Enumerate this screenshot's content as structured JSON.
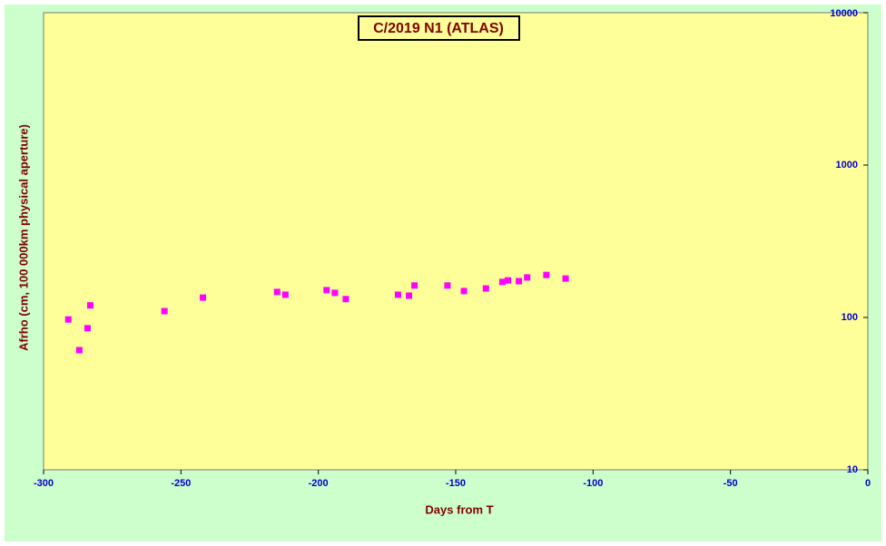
{
  "chart_data": {
    "type": "scatter",
    "title": "C/2019 N1 (ATLAS)",
    "x_label": "Days from T",
    "y_label": "Afrho (cm, 100 000km physical aperture)",
    "series": [
      {
        "color": "#ff00ff",
        "x": [
          -291,
          -287,
          -284,
          -283,
          -256,
          -242,
          -215,
          -212,
          -197,
          -194,
          -190,
          -171,
          -167,
          -165,
          -153,
          -147,
          -139,
          -133,
          -131,
          -127,
          -124,
          -117,
          -110
        ],
        "values": [
          97,
          61,
          85,
          120,
          110,
          135,
          147,
          141,
          151,
          145,
          132,
          141,
          139,
          162,
          162,
          149,
          155,
          171,
          175,
          173,
          183,
          190,
          180
        ]
      }
    ],
    "xlim": [
      -300,
      0
    ],
    "xticks": [
      -300,
      -250,
      -200,
      -150,
      -100,
      -50,
      0
    ],
    "ylim": [
      10,
      10000
    ],
    "yticks": [
      10,
      100,
      1000,
      10000
    ],
    "ylog": true,
    "y_axis_side": "right"
  }
}
